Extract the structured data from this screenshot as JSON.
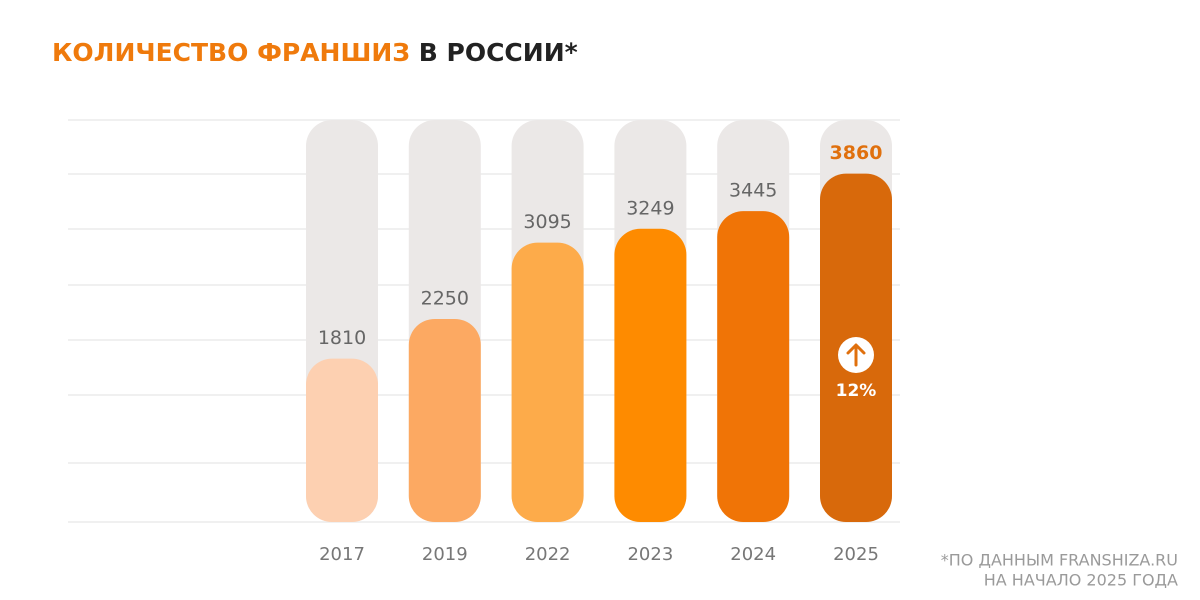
{
  "chart_data": {
    "type": "bar",
    "title": [
      "КОЛИЧЕСТВО ФРАНШИЗ",
      "В РОССИИ*"
    ],
    "categories": [
      "2017",
      "2019",
      "2022",
      "2023",
      "2024",
      "2025"
    ],
    "values": [
      1810,
      2250,
      3095,
      3249,
      3445,
      3860
    ],
    "colors": [
      "#fdd0b1",
      "#fca962",
      "#fdab4a",
      "#fe8b00",
      "#f07406",
      "#d8690b"
    ],
    "ylim": [
      0,
      4000
    ],
    "annotation": "12%",
    "note": [
      "*ПО ДАННЫМ FRANSHIZA.RU",
      "НА НАЧАЛО 2025 ГОДА"
    ]
  }
}
